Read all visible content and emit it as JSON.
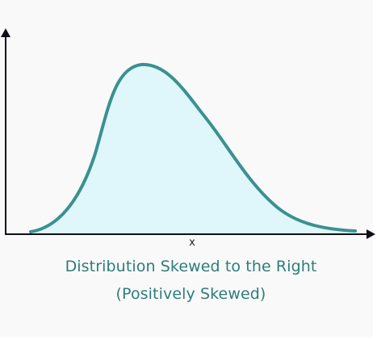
{
  "figure": {
    "x_axis_label": "x",
    "caption_line_1": "Distribution Skewed to the Right",
    "caption_line_2": "(Positively Skewed)"
  },
  "colors": {
    "background": "#f9f9f9",
    "curve_stroke": "#3a9191",
    "curve_fill": "#dff6fa",
    "axes": "#0f0f1a",
    "caption_text": "#2e7c7c"
  }
}
